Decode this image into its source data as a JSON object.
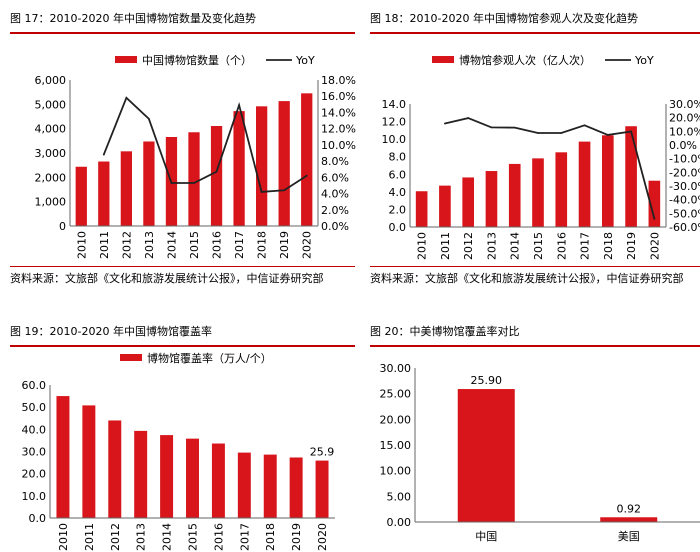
{
  "panels": [
    {
      "title": "图 17：2010-2020 年中国博物馆数量及变化趋势",
      "source": "资料来源：文旅部《文化和旅游发展统计公报》，中信证券研究部"
    },
    {
      "title": "图 18：2010-2020 年中国博物馆参观人次及变化趋势",
      "source": "资料来源：文旅部《文化和旅游发展统计公报》，中信证券研究部"
    },
    {
      "title": "图 19：2010-2020 年中国博物馆覆盖率",
      "source": ""
    },
    {
      "title": "图 20：中美博物馆覆盖率对比",
      "source": ""
    }
  ],
  "colors": {
    "bar": "#d7151b",
    "line": "#222222",
    "rule": "#c00000"
  },
  "chart_data": [
    {
      "type": "bar",
      "categories": [
        "2010",
        "2011",
        "2012",
        "2013",
        "2014",
        "2015",
        "2016",
        "2017",
        "2018",
        "2019",
        "2020"
      ],
      "series": [
        {
          "name": "中国博物馆数量（个）",
          "type": "bar",
          "axis": "left",
          "values": [
            2435,
            2650,
            3069,
            3473,
            3658,
            3852,
            4109,
            4721,
            4918,
            5132,
            5452
          ]
        },
        {
          "name": "YoY",
          "type": "line",
          "axis": "right",
          "values": [
            null,
            8.8,
            15.8,
            13.2,
            5.3,
            5.3,
            6.7,
            14.9,
            4.2,
            4.4,
            6.2
          ]
        }
      ],
      "ylim": [
        0,
        6000
      ],
      "yticks": [
        "0",
        "1,000",
        "2,000",
        "3,000",
        "4,000",
        "5,000",
        "6,000"
      ],
      "y2lim": [
        0,
        18
      ],
      "y2ticks": [
        "0.0%",
        "2.0%",
        "4.0%",
        "6.0%",
        "8.0%",
        "10.0%",
        "12.0%",
        "14.0%",
        "16.0%",
        "18.0%"
      ],
      "legend": "top"
    },
    {
      "type": "bar",
      "categories": [
        "2010",
        "2011",
        "2012",
        "2013",
        "2014",
        "2015",
        "2016",
        "2017",
        "2018",
        "2019",
        "2020"
      ],
      "series": [
        {
          "name": "博物馆参观人次（亿人次）",
          "type": "bar",
          "axis": "left",
          "values": [
            4.07,
            4.71,
            5.64,
            6.37,
            7.18,
            7.81,
            8.5,
            9.72,
            10.44,
            11.47,
            5.27
          ]
        },
        {
          "name": "YoY",
          "type": "line",
          "axis": "right",
          "values": [
            null,
            15.7,
            19.7,
            12.9,
            12.7,
            8.8,
            8.8,
            14.4,
            7.4,
            9.9,
            -54.1
          ]
        }
      ],
      "ylim": [
        0,
        14
      ],
      "yticks": [
        "0.0",
        "2.0",
        "4.0",
        "6.0",
        "8.0",
        "10.0",
        "12.0",
        "14.0"
      ],
      "y2lim": [
        -60,
        30
      ],
      "y2ticks": [
        "-60.0%",
        "-50.0%",
        "-40.0%",
        "-30.0%",
        "-20.0%",
        "-10.0%",
        "0.0%",
        "10.0%",
        "20.0%",
        "30.0%"
      ],
      "legend": "top"
    },
    {
      "type": "bar",
      "categories": [
        "2010",
        "2011",
        "2012",
        "2013",
        "2014",
        "2015",
        "2016",
        "2017",
        "2018",
        "2019",
        "2020"
      ],
      "series": [
        {
          "name": "博物馆覆盖率（万人/个）",
          "type": "bar",
          "axis": "left",
          "values": [
            55.0,
            50.8,
            44.0,
            39.3,
            37.4,
            35.8,
            33.6,
            29.5,
            28.6,
            27.3,
            25.9
          ],
          "labels": [
            "",
            "",
            "",
            "",
            "",
            "",
            "",
            "",
            "",
            "",
            "25.9"
          ]
        }
      ],
      "ylim": [
        0,
        60
      ],
      "yticks": [
        "0.0",
        "10.0",
        "20.0",
        "30.0",
        "40.0",
        "50.0",
        "60.0"
      ],
      "legend": "top"
    },
    {
      "type": "bar",
      "categories": [
        "中国",
        "美国"
      ],
      "series": [
        {
          "name": "",
          "type": "bar",
          "axis": "left",
          "values": [
            25.9,
            0.92
          ],
          "labels": [
            "25.90",
            "0.92"
          ]
        }
      ],
      "ylim": [
        0,
        30
      ],
      "yticks": [
        "0.00",
        "5.00",
        "10.00",
        "15.00",
        "20.00",
        "25.00",
        "30.00"
      ],
      "legend": "none"
    }
  ]
}
